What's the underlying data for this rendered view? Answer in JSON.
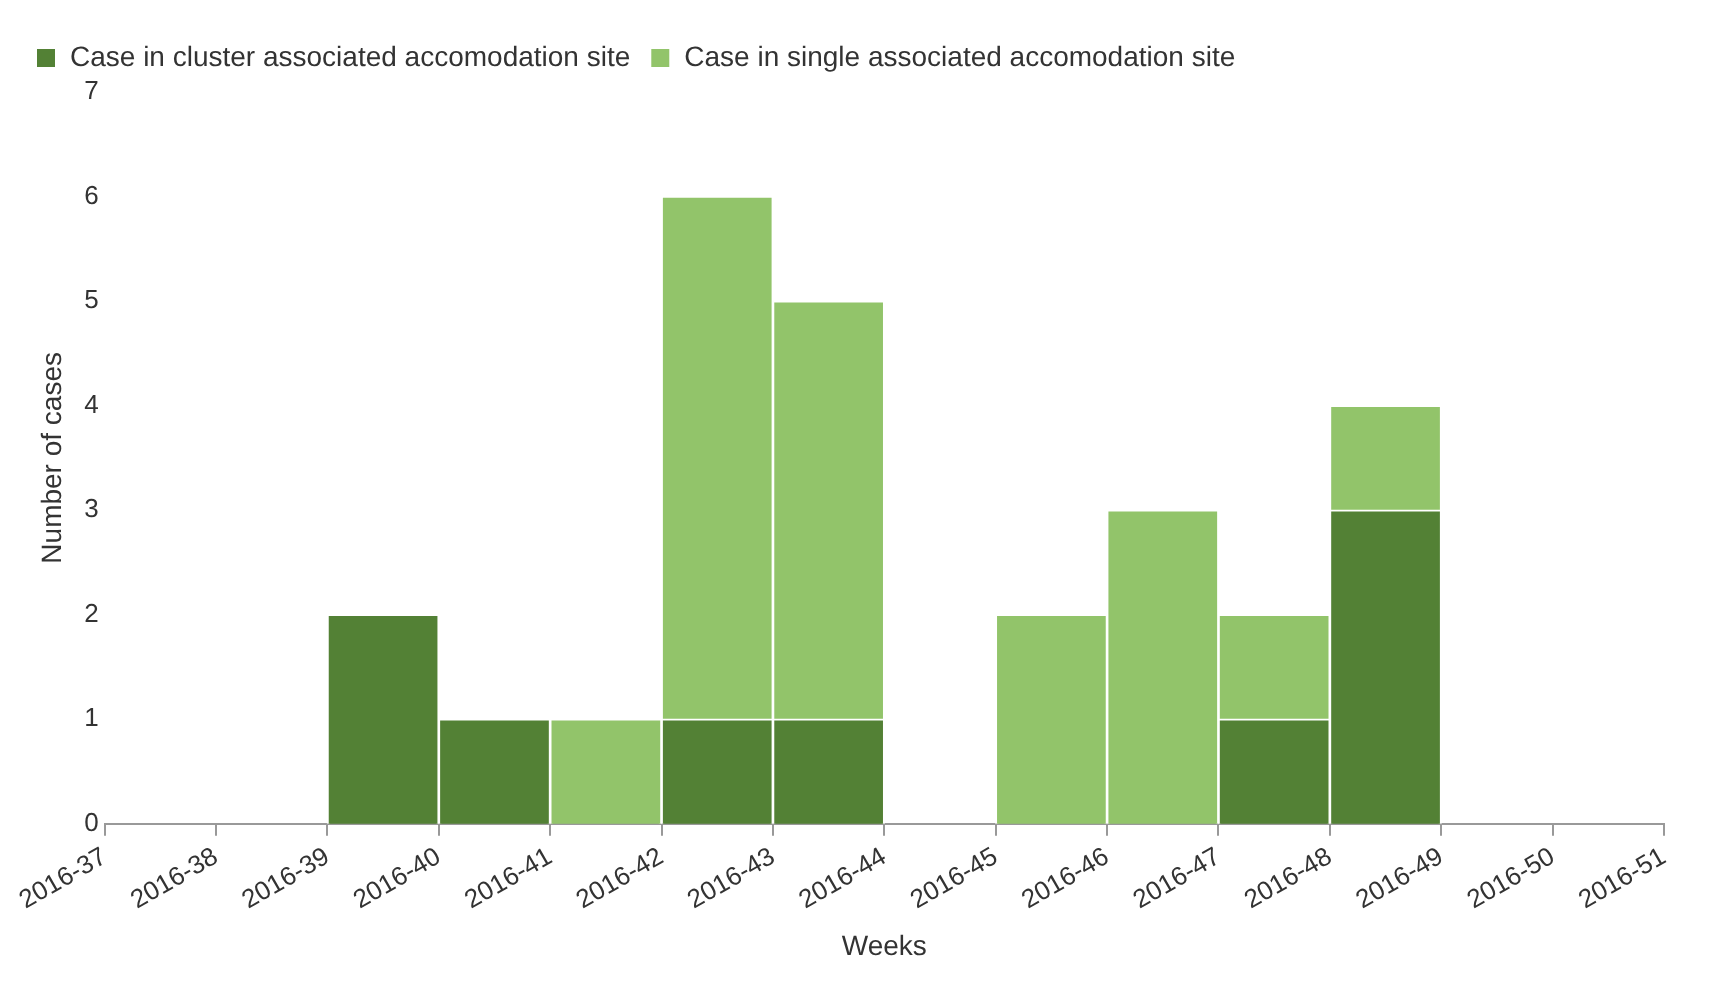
{
  "chart_data": {
    "type": "bar",
    "xlabel": "Weeks",
    "ylabel": "Number of cases",
    "categories": [
      "2016-37",
      "2016-38",
      "2016-39",
      "2016-40",
      "2016-41",
      "2016-42",
      "2016-43",
      "2016-44",
      "2016-45",
      "2016-46",
      "2016-47",
      "2016-48",
      "2016-49",
      "2016-50",
      "2016-51"
    ],
    "ylim": [
      0,
      7
    ],
    "yticks": [
      0,
      1,
      2,
      3,
      4,
      5,
      6,
      7
    ],
    "stacked": true,
    "grid": false,
    "legend": "top left",
    "series": [
      {
        "name": "Case in cluster associated accomodation site",
        "color": "#538135",
        "values": [
          0,
          0,
          2,
          1,
          0,
          1,
          1,
          0,
          0,
          0,
          1,
          3,
          0,
          0,
          0
        ]
      },
      {
        "name": "Case in single associated accomodation site",
        "color": "#92c46a",
        "values": [
          0,
          0,
          0,
          0,
          1,
          5,
          4,
          0,
          2,
          3,
          1,
          1,
          0,
          0,
          0
        ]
      }
    ]
  }
}
